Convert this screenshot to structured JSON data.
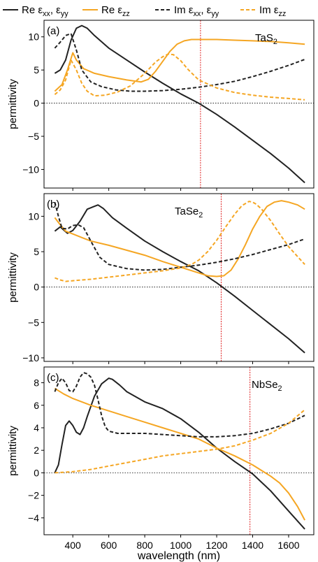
{
  "colors": {
    "black": "#222222",
    "orange": "#f5a623",
    "red": "#e02020"
  },
  "legend": [
    {
      "label": "Re εxx, εyy",
      "color": "#222222",
      "dash": false
    },
    {
      "label": "Re εzz",
      "color": "#f5a623",
      "dash": false
    },
    {
      "label": "Im εxx, εyy",
      "color": "#222222",
      "dash": true
    },
    {
      "label": "Im εzz",
      "color": "#f5a623",
      "dash": true
    }
  ],
  "chart_data": [
    {
      "type": "line",
      "panel_label": "(a)",
      "material": "TaS2",
      "ylabel": "permittivity",
      "xlabel": "",
      "xlim": [
        240,
        1740
      ],
      "ylim": [
        -12.8,
        12.5
      ],
      "yticks": [
        10,
        5,
        0,
        -5,
        -10
      ],
      "xticks": [
        400,
        600,
        800,
        1000,
        1200,
        1400,
        1600
      ],
      "show_xticklabels": false,
      "vline": 1110,
      "series": [
        {
          "name": "Re εxx, εyy",
          "color": "#222222",
          "dash": false,
          "x": [
            300,
            330,
            360,
            390,
            420,
            450,
            480,
            520,
            600,
            700,
            800,
            900,
            1000,
            1100,
            1200,
            1300,
            1400,
            1500,
            1600,
            1690
          ],
          "y": [
            4.5,
            5.0,
            6.5,
            9.5,
            11.3,
            11.7,
            11.3,
            10.2,
            8.3,
            6.5,
            4.7,
            3.0,
            1.4,
            0.0,
            -1.7,
            -3.6,
            -5.6,
            -7.6,
            -9.8,
            -12.0
          ]
        },
        {
          "name": "Re εzz",
          "color": "#f5a623",
          "dash": false,
          "x": [
            300,
            340,
            370,
            400,
            420,
            460,
            520,
            600,
            700,
            780,
            820,
            860,
            900,
            940,
            980,
            1020,
            1060,
            1100,
            1200,
            1300,
            1400,
            1500,
            1600,
            1690
          ],
          "y": [
            1.8,
            2.8,
            5.0,
            7.6,
            6.5,
            5.2,
            4.5,
            4.0,
            3.5,
            3.2,
            3.6,
            4.8,
            6.3,
            7.8,
            8.9,
            9.4,
            9.6,
            9.6,
            9.6,
            9.5,
            9.4,
            9.3,
            9.1,
            8.9
          ]
        },
        {
          "name": "Im εxx, εyy",
          "color": "#222222",
          "dash": true,
          "x": [
            300,
            330,
            360,
            390,
            420,
            450,
            500,
            560,
            640,
            720,
            800,
            900,
            1000,
            1100,
            1200,
            1300,
            1400,
            1500,
            1600,
            1690
          ],
          "y": [
            8.3,
            9.2,
            10.2,
            10.5,
            8.0,
            5.0,
            3.2,
            2.5,
            2.0,
            1.8,
            1.8,
            1.9,
            2.1,
            2.4,
            2.8,
            3.3,
            4.0,
            4.8,
            5.7,
            6.6
          ]
        },
        {
          "name": "Im εzz",
          "color": "#f5a623",
          "dash": true,
          "x": [
            300,
            330,
            360,
            390,
            420,
            450,
            480,
            520,
            580,
            650,
            720,
            800,
            860,
            900,
            930,
            960,
            1000,
            1040,
            1100,
            1200,
            1300,
            1400,
            1500,
            1600,
            1690
          ],
          "y": [
            1.3,
            2.0,
            3.5,
            6.5,
            5.0,
            3.0,
            1.8,
            1.1,
            1.2,
            1.7,
            2.6,
            4.5,
            6.2,
            7.0,
            7.4,
            7.3,
            6.4,
            5.1,
            3.5,
            2.3,
            1.6,
            1.2,
            0.9,
            0.7,
            0.5
          ]
        }
      ]
    },
    {
      "type": "line",
      "panel_label": "(b)",
      "material": "TaSe2",
      "ylabel": "permittivity",
      "xlabel": "",
      "xlim": [
        240,
        1740
      ],
      "ylim": [
        -10.5,
        13.2
      ],
      "yticks": [
        10,
        5,
        0,
        -5,
        -10
      ],
      "xticks": [
        400,
        600,
        800,
        1000,
        1200,
        1400,
        1600
      ],
      "show_xticklabels": false,
      "vline": 1225,
      "series": [
        {
          "name": "Re εxx, εyy",
          "color": "#222222",
          "dash": false,
          "x": [
            300,
            330,
            370,
            400,
            440,
            480,
            510,
            540,
            570,
            620,
            700,
            800,
            900,
            1000,
            1100,
            1200,
            1300,
            1400,
            1500,
            1600,
            1690
          ],
          "y": [
            7.9,
            8.5,
            7.6,
            8.0,
            9.3,
            11.0,
            11.3,
            11.6,
            11.1,
            9.8,
            8.3,
            6.5,
            5.0,
            3.6,
            2.3,
            0.6,
            -1.3,
            -3.3,
            -5.3,
            -7.3,
            -9.3
          ]
        },
        {
          "name": "Re εzz",
          "color": "#f5a623",
          "dash": false,
          "x": [
            300,
            330,
            360,
            400,
            450,
            500,
            600,
            700,
            800,
            900,
            1000,
            1100,
            1150,
            1200,
            1240,
            1280,
            1320,
            1360,
            1400,
            1440,
            1480,
            1520,
            1560,
            1600,
            1650,
            1690
          ],
          "y": [
            9.8,
            8.8,
            7.9,
            7.5,
            7.0,
            6.5,
            5.9,
            5.2,
            4.5,
            3.6,
            2.8,
            2.0,
            1.6,
            1.5,
            1.6,
            2.4,
            4.0,
            6.0,
            8.2,
            10.0,
            11.4,
            12.0,
            12.2,
            12.0,
            11.6,
            11.0
          ]
        },
        {
          "name": "Im εxx, εyy",
          "color": "#222222",
          "dash": true,
          "x": [
            300,
            320,
            340,
            370,
            400,
            430,
            460,
            500,
            550,
            600,
            700,
            800,
            900,
            1000,
            1100,
            1200,
            1300,
            1400,
            1500,
            1600,
            1690
          ],
          "y": [
            12.0,
            10.0,
            8.3,
            8.2,
            8.7,
            8.8,
            8.4,
            6.5,
            4.2,
            3.2,
            2.6,
            2.4,
            2.5,
            2.8,
            3.1,
            3.5,
            4.0,
            4.6,
            5.3,
            6.0,
            6.8
          ]
        },
        {
          "name": "Im εzz",
          "color": "#f5a623",
          "dash": true,
          "x": [
            300,
            330,
            360,
            400,
            500,
            600,
            700,
            800,
            900,
            1000,
            1060,
            1100,
            1150,
            1200,
            1250,
            1300,
            1340,
            1380,
            1400,
            1420,
            1450,
            1500,
            1550,
            1600,
            1650,
            1690
          ],
          "y": [
            1.3,
            1.0,
            0.8,
            0.9,
            1.1,
            1.4,
            1.7,
            2.0,
            2.3,
            2.7,
            3.2,
            3.8,
            5.0,
            6.6,
            8.5,
            10.3,
            11.5,
            12.1,
            12.0,
            11.7,
            11.0,
            9.4,
            7.5,
            5.7,
            4.3,
            3.2
          ]
        }
      ]
    },
    {
      "type": "line",
      "panel_label": "(c)",
      "material": "NbSe2",
      "ylabel": "permittivity",
      "xlabel": "wavelength (nm)",
      "xlim": [
        240,
        1740
      ],
      "ylim": [
        -5.5,
        9.4
      ],
      "yticks": [
        8,
        6,
        4,
        2,
        0,
        -2,
        -4
      ],
      "xticks": [
        400,
        600,
        800,
        1000,
        1200,
        1400,
        1600
      ],
      "show_xticklabels": true,
      "vline": 1385,
      "series": [
        {
          "name": "Re εxx, εyy",
          "color": "#222222",
          "dash": false,
          "x": [
            300,
            320,
            340,
            360,
            380,
            400,
            420,
            440,
            460,
            480,
            520,
            560,
            600,
            620,
            660,
            700,
            800,
            900,
            1000,
            1100,
            1200,
            1300,
            1400,
            1500,
            1600,
            1690
          ],
          "y": [
            0.0,
            0.7,
            2.5,
            4.2,
            4.6,
            4.2,
            3.6,
            3.4,
            4.0,
            5.0,
            6.8,
            7.9,
            8.4,
            8.3,
            7.8,
            7.2,
            6.3,
            5.7,
            4.8,
            3.6,
            2.2,
            1.0,
            -0.1,
            -1.6,
            -3.4,
            -5.0
          ]
        },
        {
          "name": "Re εzz",
          "color": "#f5a623",
          "dash": false,
          "x": [
            300,
            350,
            400,
            500,
            600,
            700,
            800,
            900,
            1000,
            1100,
            1200,
            1300,
            1400,
            1500,
            1550,
            1600,
            1650,
            1690
          ],
          "y": [
            7.5,
            7.0,
            6.6,
            6.0,
            5.5,
            5.0,
            4.5,
            4.0,
            3.5,
            3.0,
            2.2,
            1.5,
            0.7,
            -0.3,
            -0.9,
            -1.8,
            -3.0,
            -4.2
          ]
        },
        {
          "name": "Im εxx, εyy",
          "color": "#222222",
          "dash": true,
          "x": [
            300,
            320,
            340,
            360,
            380,
            400,
            420,
            440,
            460,
            480,
            500,
            520,
            540,
            560,
            580,
            600,
            650,
            700,
            800,
            900,
            1000,
            1100,
            1200,
            1300,
            1400,
            1500,
            1600,
            1690
          ],
          "y": [
            7.2,
            8.0,
            8.4,
            8.0,
            7.3,
            7.2,
            7.7,
            8.5,
            8.9,
            8.8,
            8.5,
            7.8,
            6.5,
            5.1,
            4.1,
            3.7,
            3.5,
            3.5,
            3.5,
            3.4,
            3.3,
            3.2,
            3.2,
            3.3,
            3.5,
            3.9,
            4.4,
            5.1
          ]
        },
        {
          "name": "Im εzz",
          "color": "#f5a623",
          "dash": true,
          "x": [
            300,
            400,
            500,
            600,
            700,
            800,
            900,
            1000,
            1100,
            1200,
            1300,
            1400,
            1500,
            1600,
            1690
          ],
          "y": [
            0.0,
            0.1,
            0.3,
            0.6,
            0.9,
            1.2,
            1.5,
            1.7,
            1.9,
            2.1,
            2.4,
            2.9,
            3.5,
            4.4,
            5.6
          ]
        }
      ]
    }
  ]
}
